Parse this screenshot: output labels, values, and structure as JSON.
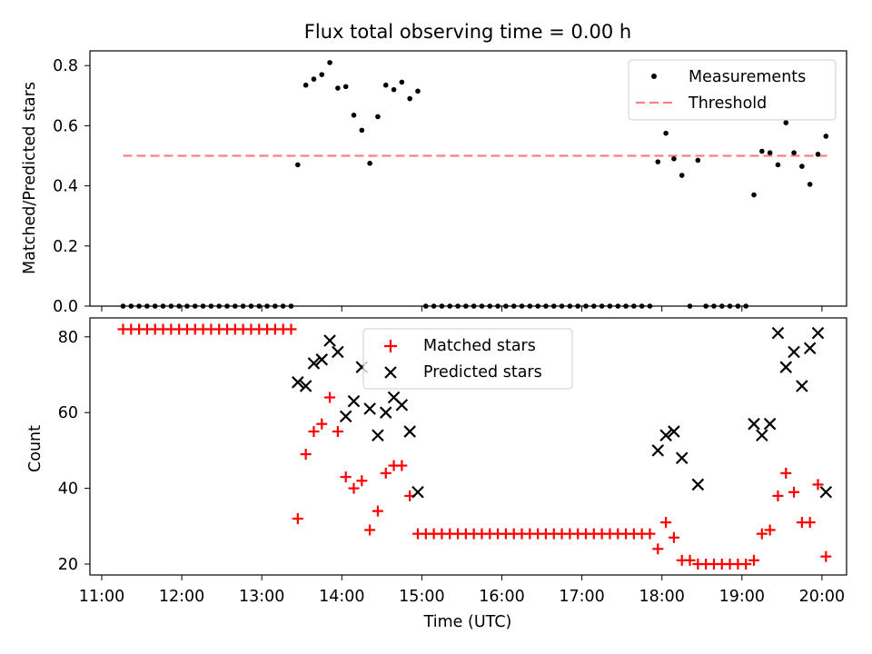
{
  "chart_data": [
    {
      "type": "scatter",
      "title": "Flux total observing time = 0.00 h",
      "xlabel": "",
      "ylabel": "Matched/Predicted stars",
      "xlim": [
        "11:00",
        "20:00"
      ],
      "ylim": [
        0,
        0.85
      ],
      "yticks": [
        "0.0",
        "0.2",
        "0.4",
        "0.6",
        "0.8"
      ],
      "legend_position": "top-right",
      "series": [
        {
          "name": "Measurements",
          "color": "#000000",
          "marker": "dot",
          "points": [
            [
              "11:16",
              0
            ],
            [
              "11:22",
              0
            ],
            [
              "11:28",
              0
            ],
            [
              "11:34",
              0
            ],
            [
              "11:40",
              0
            ],
            [
              "11:46",
              0
            ],
            [
              "11:52",
              0
            ],
            [
              "11:58",
              0
            ],
            [
              "12:04",
              0
            ],
            [
              "12:10",
              0
            ],
            [
              "12:16",
              0
            ],
            [
              "12:22",
              0
            ],
            [
              "12:28",
              0
            ],
            [
              "12:34",
              0
            ],
            [
              "12:40",
              0
            ],
            [
              "12:46",
              0
            ],
            [
              "12:52",
              0
            ],
            [
              "12:58",
              0
            ],
            [
              "13:04",
              0
            ],
            [
              "13:10",
              0
            ],
            [
              "13:16",
              0
            ],
            [
              "13:22",
              0
            ],
            [
              "13:27",
              0.47
            ],
            [
              "13:33",
              0.735
            ],
            [
              "13:39",
              0.755
            ],
            [
              "13:45",
              0.77
            ],
            [
              "13:51",
              0.81
            ],
            [
              "13:57",
              0.725
            ],
            [
              "14:03",
              0.73
            ],
            [
              "14:09",
              0.635
            ],
            [
              "14:15",
              0.585
            ],
            [
              "14:21",
              0.475
            ],
            [
              "14:27",
              0.63
            ],
            [
              "14:33",
              0.735
            ],
            [
              "14:39",
              0.72
            ],
            [
              "14:45",
              0.745
            ],
            [
              "14:51",
              0.69
            ],
            [
              "14:57",
              0.715
            ],
            [
              "15:03",
              0
            ],
            [
              "15:09",
              0
            ],
            [
              "15:15",
              0
            ],
            [
              "15:21",
              0
            ],
            [
              "15:27",
              0
            ],
            [
              "15:33",
              0
            ],
            [
              "15:39",
              0
            ],
            [
              "15:45",
              0
            ],
            [
              "15:51",
              0
            ],
            [
              "15:57",
              0
            ],
            [
              "16:03",
              0
            ],
            [
              "16:09",
              0
            ],
            [
              "16:15",
              0
            ],
            [
              "16:21",
              0
            ],
            [
              "16:27",
              0
            ],
            [
              "16:33",
              0
            ],
            [
              "16:39",
              0
            ],
            [
              "16:45",
              0
            ],
            [
              "16:51",
              0
            ],
            [
              "16:57",
              0
            ],
            [
              "17:03",
              0
            ],
            [
              "17:09",
              0
            ],
            [
              "17:15",
              0
            ],
            [
              "17:21",
              0
            ],
            [
              "17:27",
              0
            ],
            [
              "17:33",
              0
            ],
            [
              "17:39",
              0
            ],
            [
              "17:45",
              0
            ],
            [
              "17:51",
              0
            ],
            [
              "17:57",
              0.48
            ],
            [
              "18:03",
              0.575
            ],
            [
              "18:09",
              0.49
            ],
            [
              "18:15",
              0.435
            ],
            [
              "18:21",
              0
            ],
            [
              "18:27",
              0.485
            ],
            [
              "18:33",
              0
            ],
            [
              "18:39",
              0
            ],
            [
              "18:45",
              0
            ],
            [
              "18:51",
              0
            ],
            [
              "18:57",
              0
            ],
            [
              "19:03",
              0
            ],
            [
              "19:09",
              0.37
            ],
            [
              "19:15",
              0.515
            ],
            [
              "19:21",
              0.51
            ],
            [
              "19:27",
              0.47
            ],
            [
              "19:33",
              0.61
            ],
            [
              "19:39",
              0.51
            ],
            [
              "19:45",
              0.465
            ],
            [
              "19:51",
              0.405
            ],
            [
              "19:57",
              0.505
            ],
            [
              "20:03",
              0.565
            ]
          ]
        },
        {
          "name": "Threshold",
          "color": "#ff7f7f",
          "style": "dashed",
          "x": [
            "11:16",
            "20:06"
          ],
          "y": [
            0.5,
            0.5
          ]
        }
      ]
    },
    {
      "type": "scatter",
      "title": "",
      "xlabel": "Time (UTC)",
      "ylabel": "Count",
      "xlim": [
        "11:00",
        "20:00"
      ],
      "ylim": [
        17,
        85
      ],
      "xticks": [
        "11:00",
        "12:00",
        "13:00",
        "14:00",
        "15:00",
        "16:00",
        "17:00",
        "18:00",
        "19:00",
        "20:00"
      ],
      "yticks": [
        "20",
        "40",
        "60",
        "80"
      ],
      "legend_position": "top-center",
      "series": [
        {
          "name": "Matched stars",
          "color": "#ff0000",
          "marker": "plus",
          "points": [
            [
              "11:16",
              82
            ],
            [
              "11:22",
              82
            ],
            [
              "11:28",
              82
            ],
            [
              "11:34",
              82
            ],
            [
              "11:40",
              82
            ],
            [
              "11:46",
              82
            ],
            [
              "11:52",
              82
            ],
            [
              "11:58",
              82
            ],
            [
              "12:04",
              82
            ],
            [
              "12:10",
              82
            ],
            [
              "12:16",
              82
            ],
            [
              "12:22",
              82
            ],
            [
              "12:28",
              82
            ],
            [
              "12:34",
              82
            ],
            [
              "12:40",
              82
            ],
            [
              "12:46",
              82
            ],
            [
              "12:52",
              82
            ],
            [
              "12:58",
              82
            ],
            [
              "13:04",
              82
            ],
            [
              "13:10",
              82
            ],
            [
              "13:16",
              82
            ],
            [
              "13:22",
              82
            ],
            [
              "13:27",
              32
            ],
            [
              "13:33",
              49
            ],
            [
              "13:39",
              55
            ],
            [
              "13:45",
              57
            ],
            [
              "13:51",
              64
            ],
            [
              "13:57",
              55
            ],
            [
              "14:03",
              43
            ],
            [
              "14:09",
              40
            ],
            [
              "14:15",
              42
            ],
            [
              "14:21",
              29
            ],
            [
              "14:27",
              34
            ],
            [
              "14:33",
              44
            ],
            [
              "14:39",
              46
            ],
            [
              "14:45",
              46
            ],
            [
              "14:51",
              38
            ],
            [
              "14:57",
              28
            ],
            [
              "15:03",
              28
            ],
            [
              "15:09",
              28
            ],
            [
              "15:15",
              28
            ],
            [
              "15:21",
              28
            ],
            [
              "15:27",
              28
            ],
            [
              "15:33",
              28
            ],
            [
              "15:39",
              28
            ],
            [
              "15:45",
              28
            ],
            [
              "15:51",
              28
            ],
            [
              "15:57",
              28
            ],
            [
              "16:03",
              28
            ],
            [
              "16:09",
              28
            ],
            [
              "16:15",
              28
            ],
            [
              "16:21",
              28
            ],
            [
              "16:27",
              28
            ],
            [
              "16:33",
              28
            ],
            [
              "16:39",
              28
            ],
            [
              "16:45",
              28
            ],
            [
              "16:51",
              28
            ],
            [
              "16:57",
              28
            ],
            [
              "17:03",
              28
            ],
            [
              "17:09",
              28
            ],
            [
              "17:15",
              28
            ],
            [
              "17:21",
              28
            ],
            [
              "17:27",
              28
            ],
            [
              "17:33",
              28
            ],
            [
              "17:39",
              28
            ],
            [
              "17:45",
              28
            ],
            [
              "17:51",
              28
            ],
            [
              "17:57",
              24
            ],
            [
              "18:03",
              31
            ],
            [
              "18:09",
              27
            ],
            [
              "18:15",
              21
            ],
            [
              "18:21",
              21
            ],
            [
              "18:27",
              20
            ],
            [
              "18:33",
              20
            ],
            [
              "18:39",
              20
            ],
            [
              "18:45",
              20
            ],
            [
              "18:51",
              20
            ],
            [
              "18:57",
              20
            ],
            [
              "19:03",
              20
            ],
            [
              "19:09",
              21
            ],
            [
              "19:15",
              28
            ],
            [
              "19:21",
              29
            ],
            [
              "19:27",
              38
            ],
            [
              "19:33",
              44
            ],
            [
              "19:39",
              39
            ],
            [
              "19:45",
              31
            ],
            [
              "19:51",
              31
            ],
            [
              "19:57",
              41
            ],
            [
              "20:03",
              22
            ]
          ]
        },
        {
          "name": "Predicted stars",
          "color": "#000000",
          "marker": "x",
          "points": [
            [
              "13:27",
              68
            ],
            [
              "13:33",
              67
            ],
            [
              "13:39",
              73
            ],
            [
              "13:45",
              74
            ],
            [
              "13:51",
              79
            ],
            [
              "13:57",
              76
            ],
            [
              "14:03",
              59
            ],
            [
              "14:09",
              63
            ],
            [
              "14:15",
              72
            ],
            [
              "14:21",
              61
            ],
            [
              "14:27",
              54
            ],
            [
              "14:33",
              60
            ],
            [
              "14:39",
              64
            ],
            [
              "14:45",
              62
            ],
            [
              "14:51",
              55
            ],
            [
              "14:57",
              39
            ],
            [
              "17:57",
              50
            ],
            [
              "18:03",
              54
            ],
            [
              "18:09",
              55
            ],
            [
              "18:15",
              48
            ],
            [
              "18:27",
              41
            ],
            [
              "19:09",
              57
            ],
            [
              "19:15",
              54
            ],
            [
              "19:21",
              57
            ],
            [
              "19:27",
              81
            ],
            [
              "19:33",
              72
            ],
            [
              "19:39",
              76
            ],
            [
              "19:45",
              67
            ],
            [
              "19:51",
              77
            ],
            [
              "19:57",
              81
            ],
            [
              "20:03",
              39
            ]
          ]
        }
      ]
    }
  ]
}
